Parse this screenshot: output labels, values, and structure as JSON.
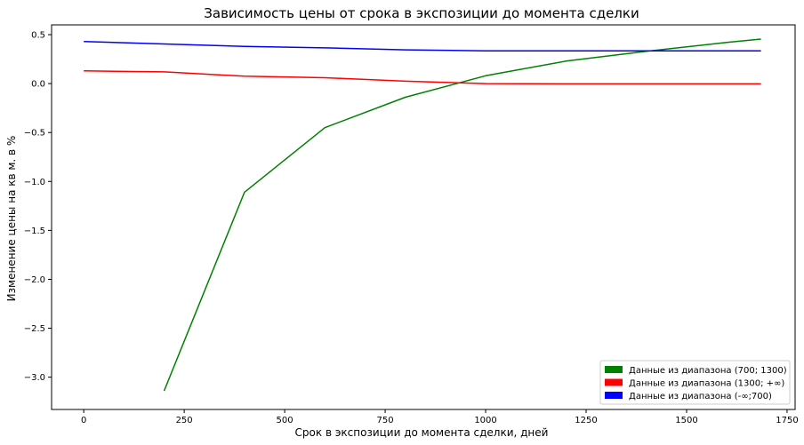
{
  "chart_data": {
    "type": "line",
    "title": "Зависимость цены от срока в экспозиции до момента сделки",
    "xlabel": "Срок в экспозиции до момента сделки, дней",
    "ylabel": "Изменение цены на кв м. в %",
    "xlim": [
      -80,
      1770
    ],
    "ylim": [
      -3.33,
      0.6
    ],
    "x_ticks": [
      0,
      250,
      500,
      750,
      1000,
      1250,
      1500,
      1750
    ],
    "x_tick_labels": [
      "0",
      "250",
      "500",
      "750",
      "1000",
      "1250",
      "1500",
      "1750"
    ],
    "y_ticks": [
      0.5,
      0.0,
      -0.5,
      -1.0,
      -1.5,
      -2.0,
      -2.5,
      -3.0
    ],
    "y_tick_labels": [
      "0.5",
      "0.0",
      "−0.5",
      "−1.0",
      "−1.5",
      "−2.0",
      "−2.5",
      "−3.0"
    ],
    "grid": false,
    "legend_position": "bottom-right",
    "series": [
      {
        "name": "Данные из диапазона (700; 1300)",
        "color": "#008000",
        "x": [
          200,
          400,
          600,
          800,
          1000,
          1200,
          1400,
          1600,
          1685
        ],
        "y": [
          -3.14,
          -1.11,
          -0.45,
          -0.14,
          0.08,
          0.23,
          0.33,
          0.42,
          0.455
        ]
      },
      {
        "name": "Данные из диапазона (1300; +∞)",
        "color": "#ff0000",
        "x": [
          0,
          200,
          400,
          600,
          800,
          1000,
          1200,
          1400,
          1600,
          1685
        ],
        "y": [
          0.13,
          0.12,
          0.075,
          0.06,
          0.025,
          0.0,
          -0.003,
          -0.003,
          -0.003,
          -0.003
        ]
      },
      {
        "name": "Данные из диапазона (-∞;700)",
        "color": "#0000ff",
        "x": [
          0,
          200,
          400,
          600,
          800,
          1000,
          1200,
          1400,
          1600,
          1685
        ],
        "y": [
          0.43,
          0.405,
          0.38,
          0.365,
          0.345,
          0.335,
          0.335,
          0.335,
          0.335,
          0.335
        ]
      }
    ]
  }
}
